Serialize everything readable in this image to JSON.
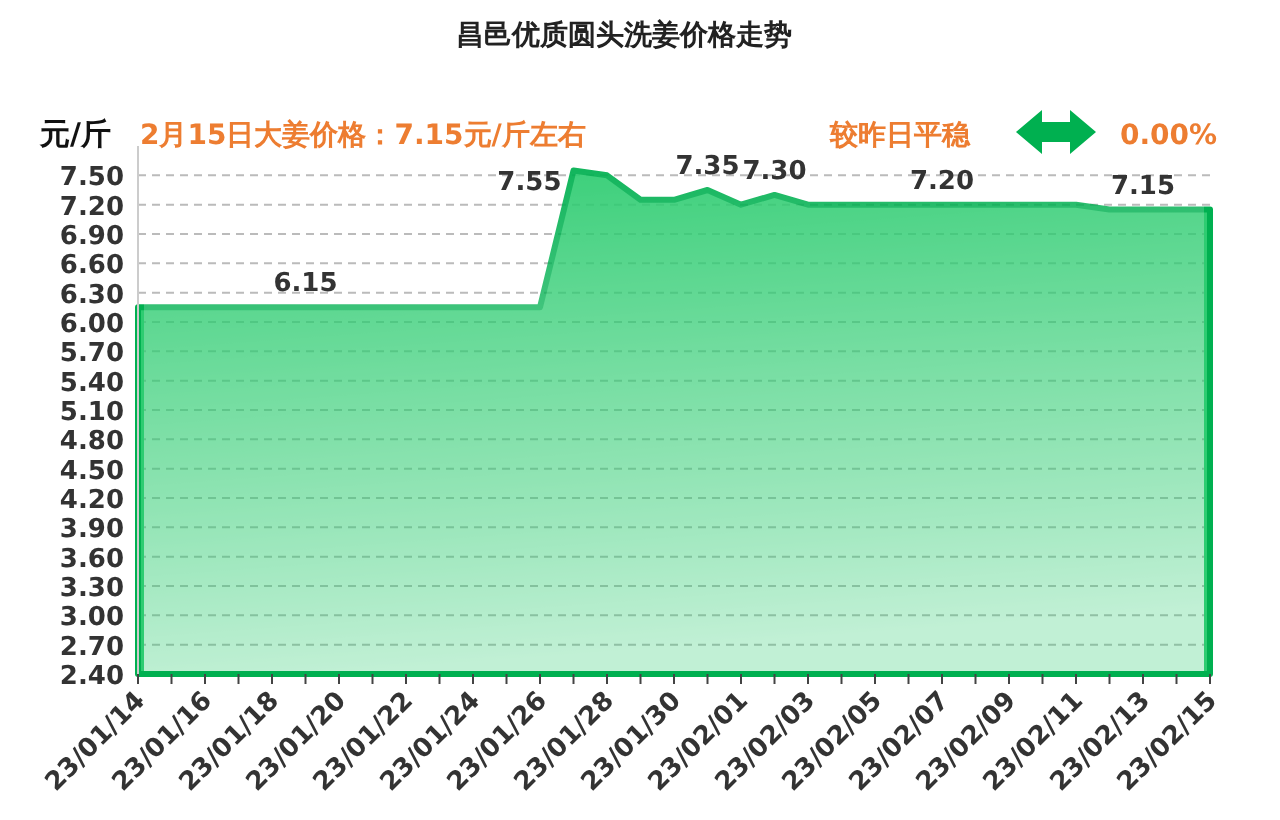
{
  "chart_data": {
    "type": "area",
    "title": "昌邑优质圆头洗姜价格走势",
    "subtitle": "2月15日大姜价格：7.15元/斤左右",
    "ylabel": "元/斤",
    "annotations": [
      "较昨日平稳",
      "0.00%"
    ],
    "categories": [
      "23/01/14",
      null,
      "23/01/16",
      null,
      "23/01/18",
      null,
      "23/01/20",
      null,
      "23/01/22",
      null,
      "23/01/24",
      null,
      "23/01/26",
      null,
      "23/01/28",
      null,
      "23/01/30",
      null,
      "23/02/01",
      null,
      "23/02/03",
      null,
      "23/02/05",
      null,
      "23/02/07",
      null,
      "23/02/09",
      null,
      "23/02/11",
      null,
      "23/02/13",
      null,
      "23/02/15"
    ],
    "series": [
      {
        "color": "#00b050",
        "values": [
          6.15,
          6.15,
          6.15,
          6.15,
          6.15,
          6.15,
          6.15,
          6.15,
          6.15,
          6.15,
          6.15,
          6.15,
          6.15,
          7.55,
          7.5,
          7.25,
          7.25,
          7.35,
          7.2,
          7.3,
          7.2,
          7.2,
          7.2,
          7.2,
          7.2,
          7.2,
          7.2,
          7.2,
          7.2,
          7.15,
          7.15,
          7.15,
          7.15
        ],
        "value_labels": [
          null,
          null,
          null,
          null,
          null,
          "6.15",
          null,
          null,
          null,
          null,
          null,
          null,
          null,
          "7.55",
          null,
          null,
          null,
          "7.35",
          null,
          "7.30",
          null,
          null,
          null,
          null,
          "7.20",
          null,
          null,
          null,
          null,
          null,
          "7.15",
          null,
          null
        ]
      }
    ],
    "ylim": [
      2.4,
      7.8
    ],
    "yticks": [
      {
        "value": 2.4,
        "label": "2.40"
      },
      {
        "value": 2.7,
        "label": "2.70"
      },
      {
        "value": 3,
        "label": "3.00"
      },
      {
        "value": 3.3,
        "label": "3.30"
      },
      {
        "value": 3.6,
        "label": "3.60"
      },
      {
        "value": 3.9,
        "label": "3.90"
      },
      {
        "value": 4.2,
        "label": "4.20"
      },
      {
        "value": 4.5,
        "label": "4.50"
      },
      {
        "value": 4.8,
        "label": "4.80"
      },
      {
        "value": 5.1,
        "label": "5.10"
      },
      {
        "value": 5.4,
        "label": "5.40"
      },
      {
        "value": 5.7,
        "label": "5.70"
      },
      {
        "value": 6,
        "label": "6.00"
      },
      {
        "value": 6.3,
        "label": "6.30"
      },
      {
        "value": 6.6,
        "label": "6.60"
      },
      {
        "value": 6.9,
        "label": "6.90"
      },
      {
        "value": 7.2,
        "label": "7.20"
      },
      {
        "value": 7.5,
        "label": "7.50"
      }
    ],
    "grid": "y",
    "legend": false
  }
}
